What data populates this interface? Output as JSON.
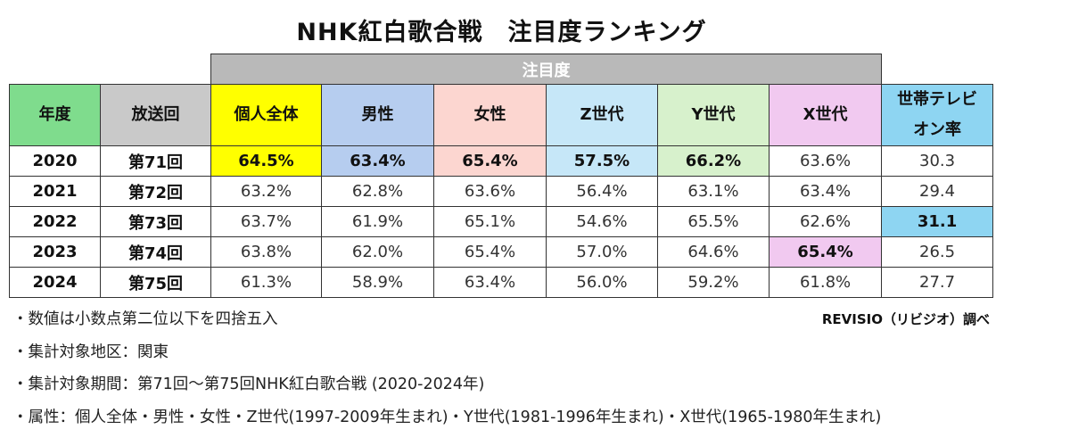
{
  "header": {
    "title": "NHK紅白歌合戦　注目度ランキング"
  },
  "table": {
    "group": "注目度",
    "columns": [
      "年度",
      "放送回",
      "個人全体",
      "男性",
      "女性",
      "Z世代",
      "Y世代",
      "X世代",
      "世帯テレビオン率"
    ],
    "rows": [
      [
        "2020",
        "第71回",
        "64.5%",
        "63.4%",
        "65.4%",
        "57.5%",
        "66.2%",
        "63.6%",
        "30.3"
      ],
      [
        "2021",
        "第72回",
        "63.2%",
        "62.8%",
        "63.6%",
        "56.4%",
        "63.1%",
        "63.4%",
        "29.4"
      ],
      [
        "2022",
        "第73回",
        "63.7%",
        "61.9%",
        "65.1%",
        "54.6%",
        "65.5%",
        "62.6%",
        "31.1"
      ],
      [
        "2023",
        "第74回",
        "63.8%",
        "62.0%",
        "65.4%",
        "57.0%",
        "64.6%",
        "65.4%",
        "26.5"
      ],
      [
        "2024",
        "第75回",
        "61.3%",
        "58.9%",
        "63.4%",
        "56.0%",
        "59.2%",
        "61.8%",
        "27.7"
      ]
    ]
  },
  "notes": [
    "・数値は小数点第二位以下を四捨五入",
    "・集計対象地区：関東",
    "・集計対象期間：第71回～第75回NHK紅白歌合戦 (2020-2024年)",
    "・属性：個人全体・男性・女性・Z世代(1997-2009年生まれ)・Y世代(1981-1996年生まれ)・X世代(1965-1980年生まれ)"
  ],
  "source": "REVISIO（リビジオ）調べ"
}
